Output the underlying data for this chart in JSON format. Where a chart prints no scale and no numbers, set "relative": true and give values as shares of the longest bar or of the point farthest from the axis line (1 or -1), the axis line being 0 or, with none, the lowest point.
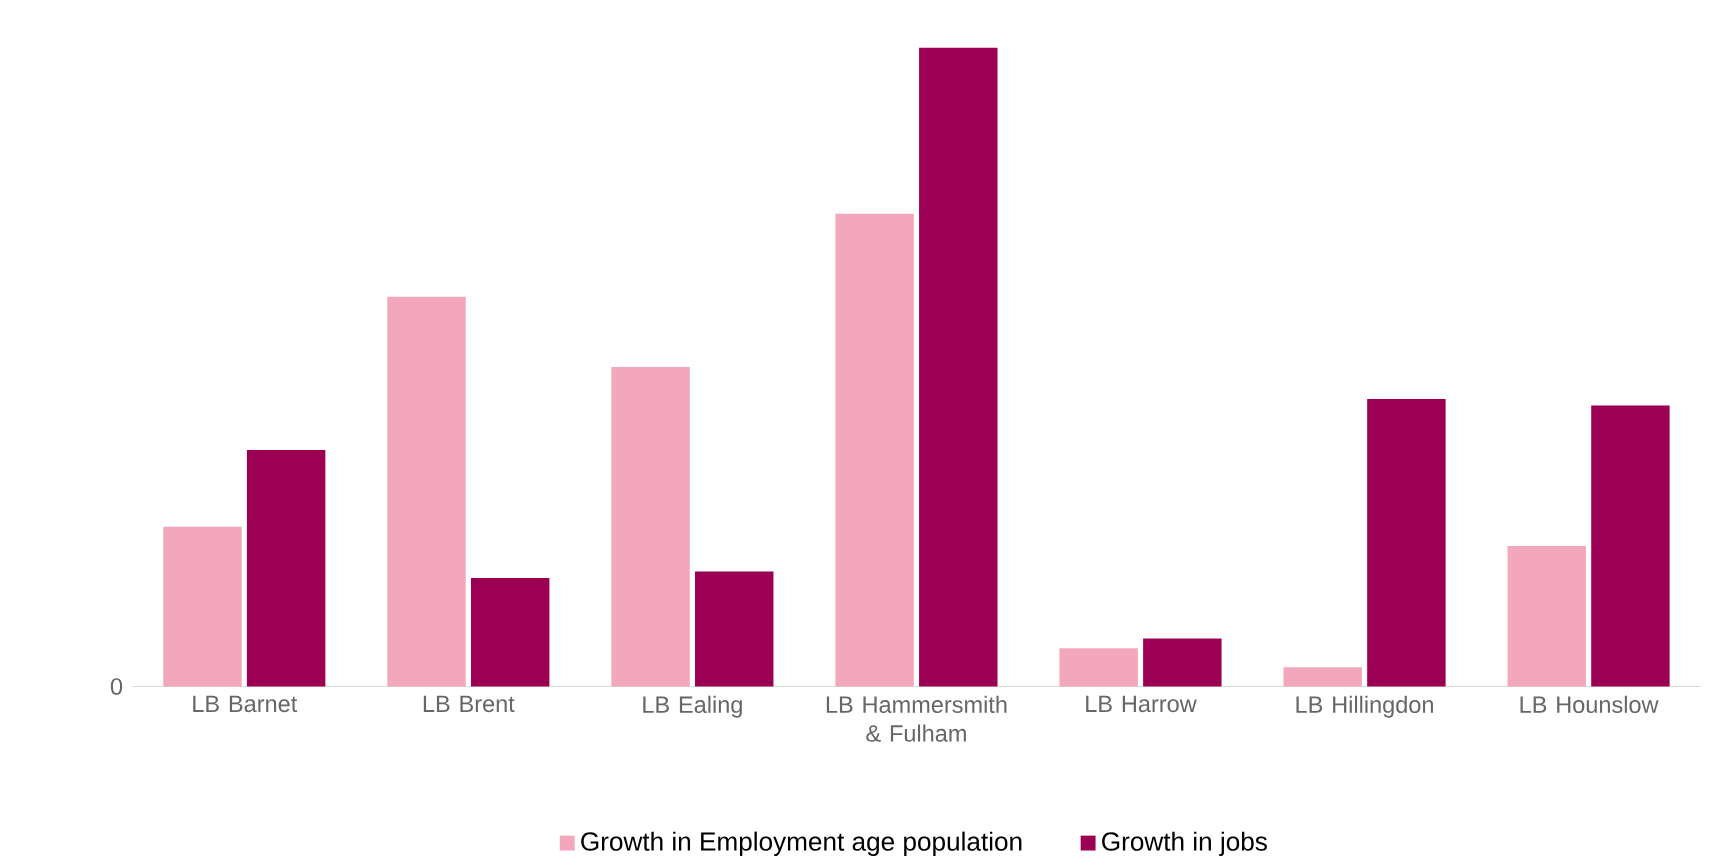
{
  "chart_data": {
    "type": "bar",
    "relative": true,
    "legend": "bottom",
    "annotations": [
      "0"
    ],
    "categories": [
      "LB Barnet",
      "LB Brent",
      "LB Ealing",
      "LB Hammersmith & Fulham",
      "LB Harrow",
      "LB Hillingdon",
      "LB Hounslow"
    ],
    "series": [
      {
        "name": "Growth in Employment age population",
        "color": "#f2a7bc",
        "values": [
          0.25,
          0.61,
          0.5,
          0.74,
          0.06,
          0.03,
          0.22
        ]
      },
      {
        "name": "Growth in jobs",
        "color": "#9b0052",
        "values": [
          0.37,
          0.17,
          0.18,
          1,
          0.075,
          0.45,
          0.44
        ]
      }
    ]
  }
}
